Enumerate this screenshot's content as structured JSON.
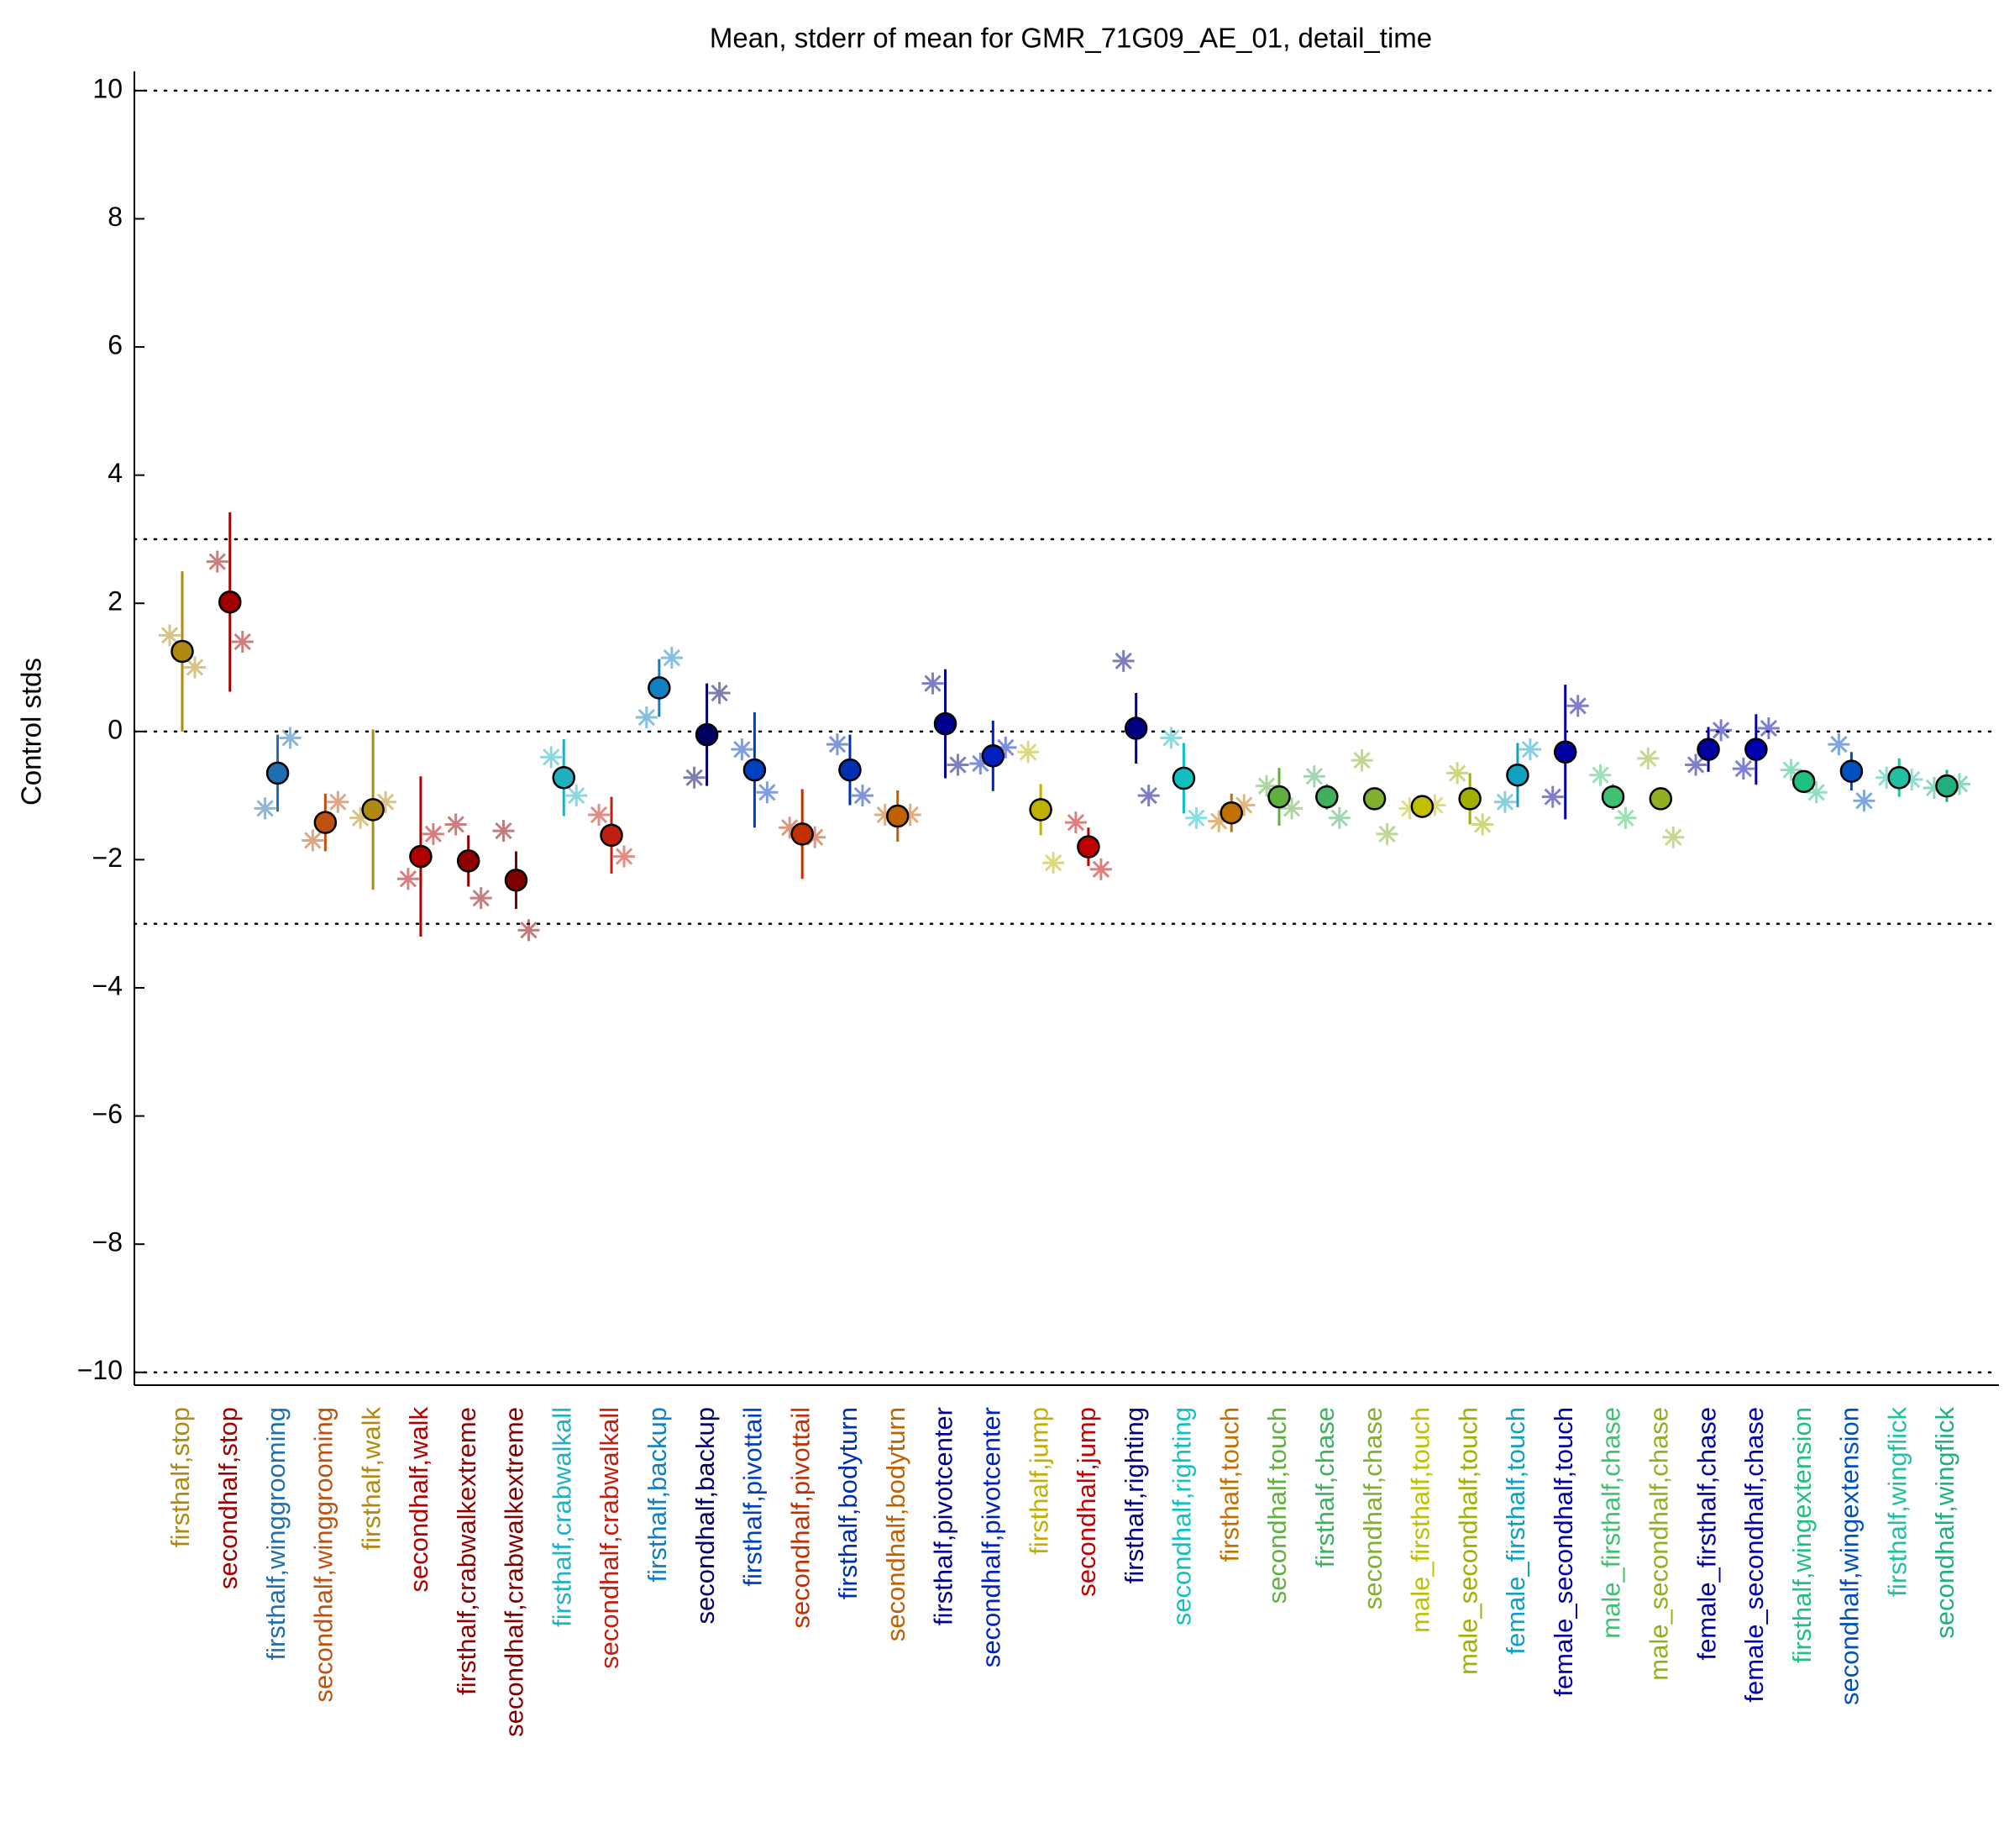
{
  "chart_data": {
    "type": "errorbar",
    "title": "Mean, stderr of mean for GMR_71G09_AE_01, detail_time",
    "y_label": "Control stds",
    "ylim": [
      -10.2,
      10.3
    ],
    "yticks": [
      {
        "value": -10,
        "label": "−10"
      },
      {
        "value": -8,
        "label": "−8"
      },
      {
        "value": -6,
        "label": "−6"
      },
      {
        "value": -4,
        "label": "−4"
      },
      {
        "value": -2,
        "label": "−2"
      },
      0,
      2,
      4,
      6,
      8,
      10
    ],
    "grid": false,
    "hlines": [
      -10,
      -3,
      0,
      3,
      10
    ],
    "categories": [
      "firsthalf,stop",
      "secondhalf,stop",
      "firsthalf,winggrooming",
      "secondhalf,winggrooming",
      "firsthalf,walk",
      "secondhalf,walk",
      "firsthalf,crabwalkextreme",
      "secondhalf,crabwalkextreme",
      "firsthalf,crabwalkall",
      "secondhalf,crabwalkall",
      "firsthalf,backup",
      "secondhalf,backup",
      "firsthalf,pivottail",
      "secondhalf,pivottail",
      "firsthalf,bodyturn",
      "secondhalf,bodyturn",
      "firsthalf,pivotcenter",
      "secondhalf,pivotcenter",
      "firsthalf,jump",
      "secondhalf,jump",
      "firsthalf,righting",
      "secondhalf,righting",
      "firsthalf,touch",
      "secondhalf,touch",
      "firsthalf,chase",
      "secondhalf,chase",
      "male_firsthalf,touch",
      "male_secondhalf,touch",
      "female_firsthalf,touch",
      "female_secondhalf,touch",
      "male_firsthalf,chase",
      "male_secondhalf,chase",
      "female_firsthalf,chase",
      "female_secondhalf,chase",
      "firsthalf,wingextension",
      "secondhalf,wingextension",
      "firsthalf,wingflick",
      "secondhalf,wingflick"
    ],
    "colors": [
      "#b08a10",
      "#a00000",
      "#1f6fb0",
      "#c05010",
      "#b08a10",
      "#b00000",
      "#900000",
      "#800000",
      "#20b0c0",
      "#c02010",
      "#1080c0",
      "#000060",
      "#0040c0",
      "#c03000",
      "#0030b0",
      "#c06000",
      "#000090",
      "#0020c0",
      "#c0b000",
      "#c00000",
      "#000080",
      "#10c0c0",
      "#c07000",
      "#60b040",
      "#40b060",
      "#80b030",
      "#c0c000",
      "#a0b000",
      "#10a0c0",
      "#0000a0",
      "#40c070",
      "#90b020",
      "#0000a0",
      "#0000b0",
      "#20c080",
      "#0050c0",
      "#20c0a0",
      "#20b080"
    ],
    "values": [
      1.25,
      2.02,
      -0.65,
      -1.42,
      -1.22,
      -1.95,
      -2.02,
      -2.32,
      -0.72,
      -1.62,
      0.68,
      -0.05,
      -0.6,
      -1.6,
      -0.6,
      -1.32,
      0.12,
      -0.38,
      -1.22,
      -1.8,
      0.05,
      -0.73,
      -1.27,
      -1.02,
      -1.02,
      -1.05,
      -1.17,
      -1.05,
      -0.68,
      -0.32,
      -1.02,
      -1.05,
      -0.28,
      -0.28,
      -0.78,
      -0.62,
      -0.72,
      -0.85
    ],
    "errors": [
      1.25,
      1.4,
      0.6,
      0.45,
      1.25,
      1.25,
      0.4,
      0.45,
      0.6,
      0.6,
      0.45,
      0.8,
      0.9,
      0.7,
      0.55,
      0.4,
      0.85,
      0.55,
      0.4,
      0.3,
      0.55,
      0.55,
      0.3,
      0.45,
      0.2,
      0.15,
      0.15,
      0.4,
      0.5,
      1.05,
      0.2,
      0.1,
      0.35,
      0.55,
      0.15,
      0.3,
      0.3,
      0.25
    ],
    "left_values": [
      1.5,
      2.65,
      -1.2,
      -1.7,
      -1.35,
      -2.3,
      -1.45,
      -1.55,
      -0.4,
      -1.3,
      0.22,
      -0.72,
      -0.28,
      -1.5,
      -0.2,
      -1.3,
      0.75,
      -0.5,
      -0.32,
      -1.42,
      1.1,
      -0.1,
      -1.4,
      -0.85,
      -0.7,
      -0.45,
      -1.2,
      -0.65,
      -1.1,
      -1.02,
      -0.68,
      -0.42,
      -0.52,
      -0.58,
      -0.6,
      -0.2,
      -0.72,
      -0.88
    ],
    "right_values": [
      1.0,
      1.4,
      -0.1,
      -1.1,
      -1.1,
      -1.6,
      -2.6,
      -3.1,
      -1.0,
      -1.95,
      1.15,
      0.6,
      -0.95,
      -1.65,
      -1.0,
      -1.3,
      -0.52,
      -0.25,
      -2.05,
      -2.15,
      -1.0,
      -1.35,
      -1.15,
      -1.2,
      -1.35,
      -1.6,
      -1.15,
      -1.45,
      -0.28,
      0.4,
      -1.35,
      -1.65,
      0.02,
      0.05,
      -0.95,
      -1.08,
      -0.75,
      -0.82
    ]
  }
}
